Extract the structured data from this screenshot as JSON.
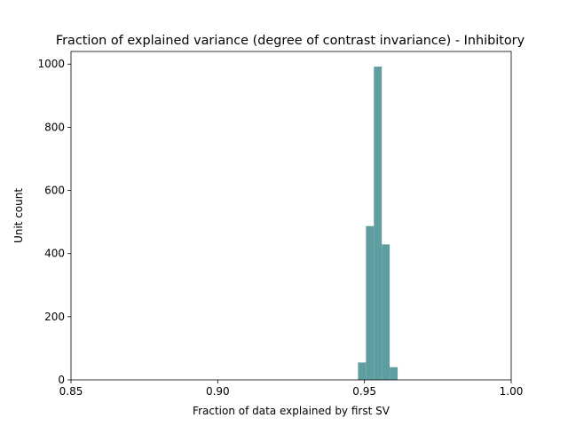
{
  "chart_data": {
    "type": "bar",
    "title": "Fraction of explained variance (degree of contrast invariance) - Inhibitory",
    "xlabel": "Fraction of data explained by first SV",
    "ylabel": "Unit count",
    "xlim": [
      0.85,
      1.0
    ],
    "ylim": [
      0,
      1040
    ],
    "x_ticks": [
      0.85,
      0.9,
      0.95,
      1.0
    ],
    "x_tick_labels": [
      "0.85",
      "0.90",
      "0.95",
      "1.00"
    ],
    "y_ticks": [
      0,
      200,
      400,
      600,
      800,
      1000
    ],
    "y_tick_labels": [
      "0",
      "200",
      "400",
      "600",
      "800",
      "1000"
    ],
    "grid": false,
    "bar_color": "#5f9ea0",
    "bins": [
      {
        "x0": 0.9478,
        "x1": 0.9505,
        "count": 55
      },
      {
        "x0": 0.9505,
        "x1": 0.9532,
        "count": 487
      },
      {
        "x0": 0.9532,
        "x1": 0.9559,
        "count": 992
      },
      {
        "x0": 0.9559,
        "x1": 0.9586,
        "count": 429
      },
      {
        "x0": 0.9586,
        "x1": 0.9613,
        "count": 40
      }
    ]
  }
}
